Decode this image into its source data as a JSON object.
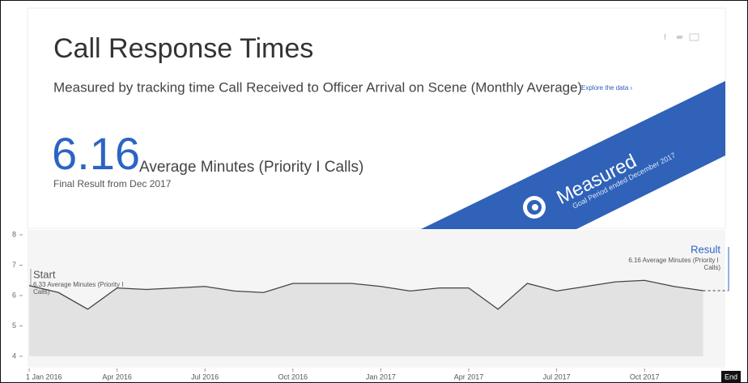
{
  "header": {
    "title": "Call Response Times",
    "subtitle": "Measured by tracking time Call Received to Officer Arrival on Scene (Monthly Average)",
    "link": "Explore the data ›",
    "value": 6.16,
    "value_caption": "Average Minutes (Priority I Calls)",
    "result_note": "Final Result from Dec 2017"
  },
  "banner": {
    "label": "Measured",
    "note": "Goal Period ended December 2017"
  },
  "chart_data": {
    "type": "area",
    "categories": [
      "1 Jan 2016",
      null,
      null,
      "Apr 2016",
      null,
      null,
      "Jul 2016",
      null,
      null,
      "Oct 2016",
      null,
      null,
      "Jan 2017",
      null,
      null,
      "Apr 2017",
      null,
      null,
      "Jul 2017",
      null,
      null,
      "Oct 2017",
      null,
      null
    ],
    "values": [
      6.33,
      6.1,
      5.55,
      6.25,
      6.2,
      6.25,
      6.3,
      6.15,
      6.1,
      6.4,
      6.4,
      6.4,
      6.3,
      6.15,
      6.25,
      6.25,
      5.55,
      6.4,
      6.15,
      6.3,
      6.45,
      6.5,
      6.3,
      6.16
    ],
    "color": "#444444",
    "fill": "#e2e2e2",
    "ylim": [
      4,
      8
    ],
    "yticks": [
      4,
      5,
      6,
      7,
      8
    ],
    "end_label": "End",
    "annotations": {
      "start_title": "Start",
      "start_text": "6.33 Average Minutes (Priority I Calls)",
      "result_title": "Result",
      "result_text": "6.16 Average Minutes (Priority I Calls)"
    }
  }
}
